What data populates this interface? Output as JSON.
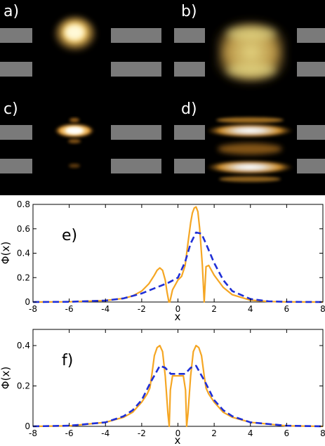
{
  "images": {
    "panels": [
      {
        "label": "a)"
      },
      {
        "label": "b)"
      },
      {
        "label": "c)"
      },
      {
        "label": "d)"
      }
    ],
    "colors": {
      "background": "#000000",
      "bar": "#7a7a7a",
      "glow": "#f4b84a",
      "glow_core": "#fffbe8"
    }
  },
  "chart_data": [
    {
      "type": "line",
      "panel_label": "e)",
      "xlabel": "x",
      "ylabel": "Φ(x)",
      "xlim": [
        -8,
        8
      ],
      "ylim": [
        0,
        0.8
      ],
      "xticks": [
        -8,
        -6,
        -4,
        -2,
        0,
        2,
        4,
        6,
        8
      ],
      "yticks": [
        0,
        0.2,
        0.4,
        0.6,
        0.8
      ],
      "ytick_labels": [
        "0",
        "0.2",
        "0.4",
        "0.6",
        "0.8"
      ],
      "series": [
        {
          "style": "solid",
          "color": "#f5a623",
          "x": [
            -8,
            -6,
            -4,
            -3,
            -2.5,
            -2,
            -1.6,
            -1.3,
            -1.15,
            -1.0,
            -0.85,
            -0.7,
            -0.6,
            -0.5,
            -0.45,
            -0.3,
            0,
            0.2,
            0.4,
            0.55,
            0.7,
            0.8,
            0.9,
            1.0,
            1.1,
            1.2,
            1.35,
            1.45,
            1.55,
            1.7,
            2.0,
            2.5,
            3,
            4,
            5,
            6,
            8
          ],
          "y": [
            0,
            0.002,
            0.012,
            0.03,
            0.05,
            0.09,
            0.15,
            0.22,
            0.26,
            0.28,
            0.26,
            0.18,
            0.08,
            0.0,
            0.0,
            0.1,
            0.18,
            0.21,
            0.3,
            0.48,
            0.65,
            0.73,
            0.77,
            0.78,
            0.74,
            0.6,
            0.3,
            0.0,
            0.29,
            0.3,
            0.22,
            0.12,
            0.06,
            0.015,
            0.004,
            0.001,
            0
          ]
        },
        {
          "style": "dashed",
          "color": "#1f2fd6",
          "x": [
            -8,
            -6,
            -4,
            -3,
            -2,
            -1.5,
            -1,
            -0.5,
            0,
            0.4,
            0.7,
            1.0,
            1.3,
            1.6,
            2.0,
            2.5,
            3,
            4,
            5,
            6,
            8
          ],
          "y": [
            0,
            0.002,
            0.012,
            0.03,
            0.07,
            0.1,
            0.13,
            0.16,
            0.2,
            0.33,
            0.48,
            0.57,
            0.56,
            0.46,
            0.32,
            0.18,
            0.09,
            0.025,
            0.006,
            0.001,
            0
          ]
        }
      ]
    },
    {
      "type": "line",
      "panel_label": "f)",
      "xlabel": "x",
      "ylabel": "Φ(x)",
      "xlim": [
        -8,
        8
      ],
      "ylim": [
        0,
        0.48
      ],
      "xticks": [
        -8,
        -6,
        -4,
        -2,
        0,
        2,
        4,
        6,
        8
      ],
      "yticks": [
        0,
        0.2,
        0.4
      ],
      "ytick_labels": [
        "0",
        "0.2",
        "0.4"
      ],
      "series": [
        {
          "style": "solid",
          "color": "#f5a623",
          "x": [
            -8,
            -6,
            -4,
            -3,
            -2.5,
            -2,
            -1.7,
            -1.55,
            -1.45,
            -1.3,
            -1.15,
            -1.0,
            -0.85,
            -0.7,
            -0.55,
            -0.48,
            -0.42,
            -0.3,
            0,
            0.3,
            0.42,
            0.48,
            0.55,
            0.7,
            0.85,
            1.0,
            1.15,
            1.3,
            1.45,
            1.55,
            1.7,
            2,
            2.5,
            3,
            4,
            6,
            8
          ],
          "y": [
            0,
            0.002,
            0.02,
            0.045,
            0.07,
            0.12,
            0.16,
            0.19,
            0.25,
            0.35,
            0.39,
            0.4,
            0.37,
            0.25,
            0.06,
            0.0,
            0.18,
            0.25,
            0.25,
            0.25,
            0.18,
            0.0,
            0.06,
            0.25,
            0.37,
            0.4,
            0.39,
            0.35,
            0.25,
            0.19,
            0.16,
            0.12,
            0.07,
            0.045,
            0.02,
            0.002,
            0
          ]
        },
        {
          "style": "dashed",
          "color": "#1f2fd6",
          "x": [
            -8,
            -6,
            -4,
            -3,
            -2.5,
            -2,
            -1.5,
            -1.0,
            -0.7,
            -0.4,
            0,
            0.4,
            0.7,
            1.0,
            1.5,
            2,
            2.5,
            3,
            4,
            6,
            8
          ],
          "y": [
            0,
            0.003,
            0.02,
            0.05,
            0.08,
            0.13,
            0.22,
            0.3,
            0.29,
            0.26,
            0.26,
            0.26,
            0.29,
            0.3,
            0.22,
            0.13,
            0.08,
            0.05,
            0.02,
            0.003,
            0
          ]
        }
      ]
    }
  ]
}
